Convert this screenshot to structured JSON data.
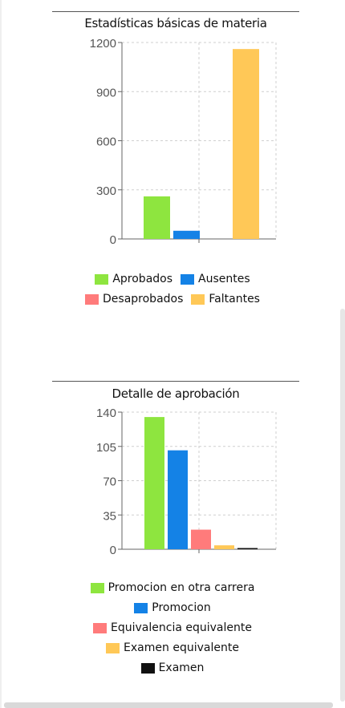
{
  "charts": [
    {
      "title": "Estadísticas básicas de materia",
      "legend": [
        {
          "label": "Aprobados",
          "color": "#8ee53f"
        },
        {
          "label": "Ausentes",
          "color": "#1482e6"
        },
        {
          "label": "Desaprobados",
          "color": "#ff7b7b"
        },
        {
          "label": "Faltantes",
          "color": "#ffc857"
        }
      ]
    },
    {
      "title": "Detalle de aprobación",
      "legend": [
        {
          "label": "Promocion en otra carrera",
          "color": "#8ee53f"
        },
        {
          "label": "Promocion",
          "color": "#1482e6"
        },
        {
          "label": "Equivalencia equivalente",
          "color": "#ff7b7b"
        },
        {
          "label": "Examen equivalente",
          "color": "#ffc857"
        },
        {
          "label": "Examen",
          "color": "#111111"
        }
      ]
    }
  ],
  "chart_data": [
    {
      "type": "bar",
      "title": "Estadísticas básicas de materia",
      "xlabel": "",
      "ylabel": "",
      "ylim": [
        0,
        1200
      ],
      "yticks": [
        "0",
        "300",
        "600",
        "900",
        "1200"
      ],
      "grid": true,
      "legend_position": "bottom",
      "series": [
        {
          "name": "Aprobados",
          "values": [
            260
          ],
          "color": "#8ee53f"
        },
        {
          "name": "Ausentes",
          "values": [
            50
          ],
          "color": "#1482e6"
        },
        {
          "name": "Desaprobados",
          "values": [
            0
          ],
          "color": "#ff7b7b"
        },
        {
          "name": "Faltantes",
          "values": [
            1160
          ],
          "color": "#ffc857"
        }
      ]
    },
    {
      "type": "bar",
      "title": "Detalle de aprobación",
      "xlabel": "",
      "ylabel": "",
      "ylim": [
        0,
        140
      ],
      "yticks": [
        "0",
        "35",
        "70",
        "105",
        "140"
      ],
      "grid": true,
      "legend_position": "bottom",
      "series": [
        {
          "name": "Promocion en otra carrera",
          "values": [
            135
          ],
          "color": "#8ee53f"
        },
        {
          "name": "Promocion",
          "values": [
            101
          ],
          "color": "#1482e6"
        },
        {
          "name": "Equivalencia equivalente",
          "values": [
            20
          ],
          "color": "#ff7b7b"
        },
        {
          "name": "Examen equivalente",
          "values": [
            4
          ],
          "color": "#ffc857"
        },
        {
          "name": "Examen",
          "values": [
            1
          ],
          "color": "#111111"
        }
      ]
    }
  ]
}
